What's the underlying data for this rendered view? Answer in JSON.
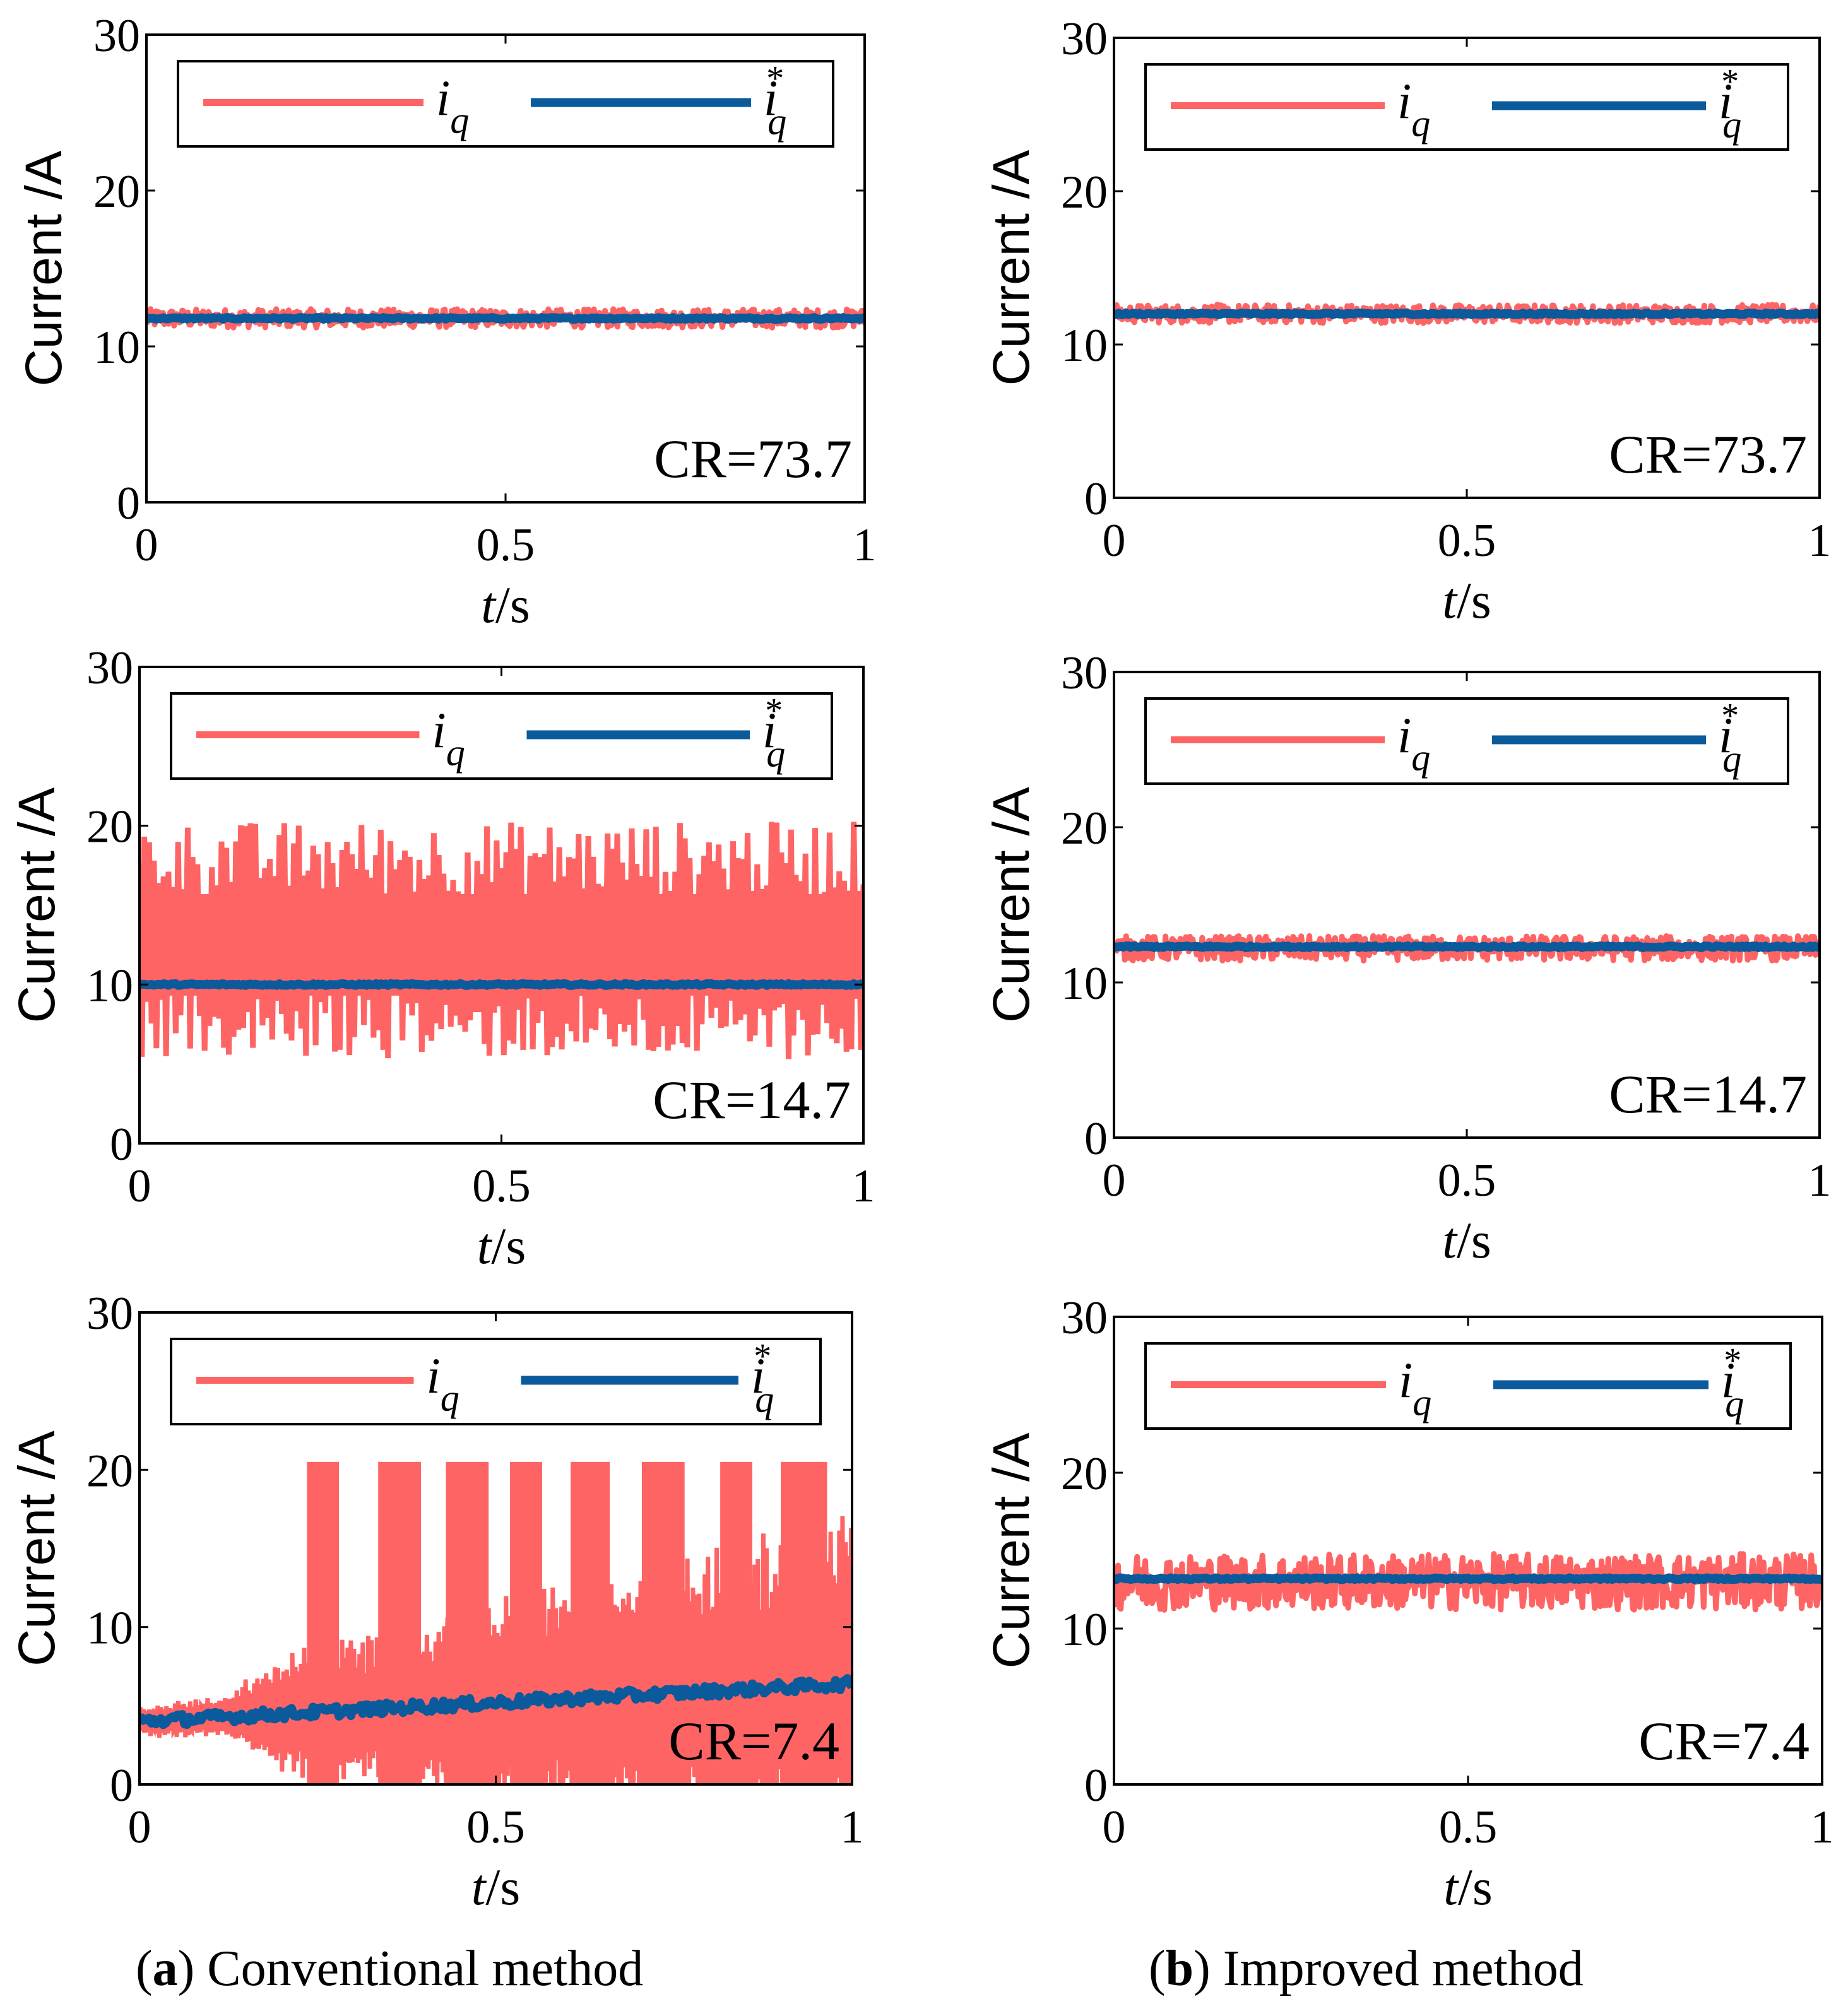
{
  "colors": {
    "iq": "#ff6464",
    "iq_ref": "#0a5a9c",
    "axis": "#000000"
  },
  "captions": [
    {
      "letter": "a",
      "text": ") Conventional method",
      "prefix": "("
    },
    {
      "letter": "b",
      "text": ") Improved method",
      "prefix": "("
    }
  ],
  "chart_data": [
    {
      "id": "a1",
      "type": "line",
      "column": "Conventional method",
      "ylabel": "Current /A",
      "xlabel": "t/s",
      "xlim": [
        0,
        1
      ],
      "ylim": [
        0,
        30
      ],
      "xticks": [
        "0",
        "0.5",
        "1"
      ],
      "yticks": [
        "0",
        "10",
        "20",
        "30"
      ],
      "annotation": "CR=73.7",
      "legend": [
        {
          "name": "i_q",
          "base": "i",
          "sub": "q",
          "sup": ""
        },
        {
          "name": "i_q*",
          "base": "i",
          "sub": "q",
          "sup": "*"
        }
      ],
      "series": [
        {
          "name": "i_q",
          "kind": "band",
          "mean": 11.8,
          "amplitude": 0.6
        },
        {
          "name": "i_q*",
          "kind": "ramp",
          "start": 11.8,
          "end": 11.8
        }
      ]
    },
    {
      "id": "b1",
      "type": "line",
      "column": "Improved method",
      "ylabel": "Current /A",
      "xlabel": "t/s",
      "xlim": [
        0,
        1
      ],
      "ylim": [
        0,
        30
      ],
      "xticks": [
        "0",
        "0.5",
        "1"
      ],
      "yticks": [
        "0",
        "10",
        "20",
        "30"
      ],
      "annotation": "CR=73.7",
      "legend": [
        {
          "name": "i_q",
          "base": "i",
          "sub": "q",
          "sup": ""
        },
        {
          "name": "i_q*",
          "base": "i",
          "sub": "q",
          "sup": "*"
        }
      ],
      "series": [
        {
          "name": "i_q",
          "kind": "band",
          "mean": 12.0,
          "amplitude": 0.6
        },
        {
          "name": "i_q*",
          "kind": "ramp",
          "start": 12.0,
          "end": 12.0
        }
      ]
    },
    {
      "id": "a2",
      "type": "line",
      "column": "Conventional method",
      "ylabel": "Current /A",
      "xlabel": "t/s",
      "xlim": [
        0,
        1
      ],
      "ylim": [
        0,
        30
      ],
      "xticks": [
        "0",
        "0.5",
        "1"
      ],
      "yticks": [
        "0",
        "10",
        "20",
        "30"
      ],
      "annotation": "CR=14.7",
      "legend": [
        {
          "name": "i_q",
          "base": "i",
          "sub": "q",
          "sup": ""
        },
        {
          "name": "i_q*",
          "base": "i",
          "sub": "q",
          "sup": "*"
        }
      ],
      "series": [
        {
          "name": "i_q",
          "kind": "oscillation",
          "mean": 12.5,
          "amplitude": 4.5,
          "max": 20.3,
          "min": 5.3
        },
        {
          "name": "i_q*",
          "kind": "ramp",
          "start": 10.0,
          "end": 10.0
        }
      ]
    },
    {
      "id": "b2",
      "type": "line",
      "column": "Improved method",
      "ylabel": "Current /A",
      "xlabel": "t/s",
      "xlim": [
        0,
        1
      ],
      "ylim": [
        0,
        30
      ],
      "xticks": [
        "0",
        "0.5",
        "1"
      ],
      "yticks": [
        "0",
        "10",
        "20",
        "30"
      ],
      "annotation": "CR=14.7",
      "legend": [
        {
          "name": "i_q",
          "base": "i",
          "sub": "q",
          "sup": ""
        },
        {
          "name": "i_q*",
          "base": "i",
          "sub": "q",
          "sup": "*"
        }
      ],
      "series": [
        {
          "name": "i_q",
          "kind": "band",
          "mean": 12.2,
          "amplitude": 0.8
        },
        {
          "name": "i_q*",
          "kind": "ramp",
          "start": 12.3,
          "end": 12.3
        }
      ]
    },
    {
      "id": "a3",
      "type": "line",
      "column": "Conventional method",
      "ylabel": "Current /A",
      "xlabel": "t/s",
      "xlim": [
        0,
        1
      ],
      "ylim": [
        0,
        30
      ],
      "xticks": [
        "0",
        "0.5",
        "1"
      ],
      "yticks": [
        "0",
        "10",
        "20",
        "30"
      ],
      "annotation": "CR=7.4",
      "legend": [
        {
          "name": "i_q",
          "base": "i",
          "sub": "q",
          "sup": ""
        },
        {
          "name": "i_q*",
          "base": "i",
          "sub": "q",
          "sup": "*"
        }
      ],
      "series": [
        {
          "name": "i_q",
          "kind": "unstable",
          "max": 20.5,
          "min": 0,
          "bursts": [
            [
              0.235,
              0.28
            ],
            [
              0.335,
              0.395
            ],
            [
              0.43,
              0.49
            ],
            [
              0.52,
              0.565
            ],
            [
              0.605,
              0.66
            ],
            [
              0.705,
              0.765
            ],
            [
              0.815,
              0.86
            ],
            [
              0.9,
              0.965
            ]
          ]
        },
        {
          "name": "i_q*",
          "kind": "ramp",
          "start": 4.0,
          "end": 6.4
        }
      ]
    },
    {
      "id": "b3",
      "type": "line",
      "column": "Improved method",
      "ylabel": "Current /A",
      "xlabel": "t/s",
      "xlim": [
        0,
        1
      ],
      "ylim": [
        0,
        30
      ],
      "xticks": [
        "0",
        "0.5",
        "1"
      ],
      "yticks": [
        "0",
        "10",
        "20",
        "30"
      ],
      "annotation": "CR=7.4",
      "legend": [
        {
          "name": "i_q",
          "base": "i",
          "sub": "q",
          "sup": ""
        },
        {
          "name": "i_q*",
          "base": "i",
          "sub": "q",
          "sup": "*"
        }
      ],
      "series": [
        {
          "name": "i_q",
          "kind": "band",
          "mean": 13.0,
          "amplitude": 1.8
        },
        {
          "name": "i_q*",
          "kind": "ramp",
          "start": 13.2,
          "end": 13.2
        }
      ]
    }
  ]
}
